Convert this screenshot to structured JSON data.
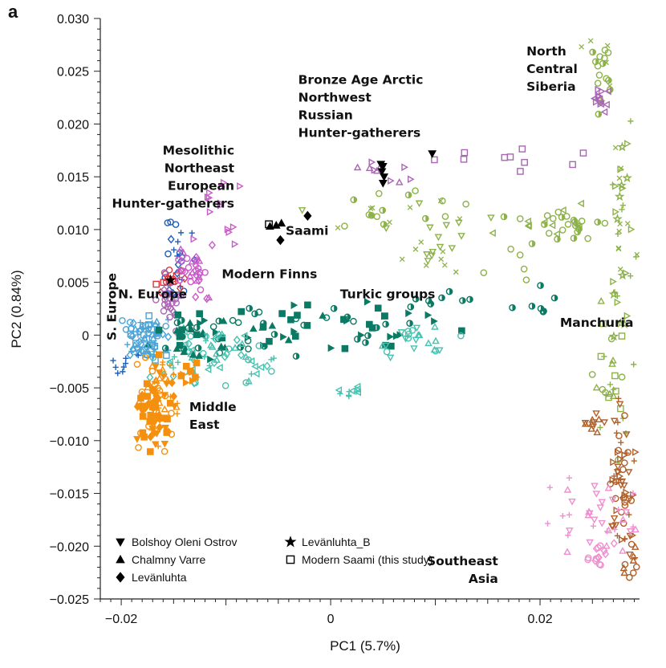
{
  "panel_letter": "a",
  "colors": {
    "green": "#8db24a",
    "purple": "#a866b3",
    "magenta": "#c85cc8",
    "teal": "#0a7a64",
    "aqua": "#48c2b0",
    "orange": "#f5900f",
    "brown": "#b0602a",
    "pink": "#ee8fcf",
    "blue": "#1f5fb8",
    "lightblue": "#4aa3d6",
    "red": "#e0333a",
    "black": "#000000"
  },
  "chart_data": {
    "type": "scatter",
    "xlabel": "PC1 (5.7%)",
    "ylabel": "PC2 (0.84%)",
    "xlim": [
      -0.022,
      0.0295
    ],
    "ylim": [
      -0.025,
      0.03
    ],
    "xticks": [
      -0.02,
      0,
      0.02
    ],
    "xtick_labels": [
      "−0.02",
      "0",
      "0.02"
    ],
    "yticks": [
      0.03,
      0.025,
      0.02,
      0.015,
      0.01,
      0.005,
      0,
      -0.005,
      -0.01,
      -0.015,
      -0.02,
      -0.025
    ],
    "ytick_labels": [
      "0.030",
      "0.025",
      "0.020",
      "0.015",
      "0.010",
      "0.005",
      "0",
      "−0.005",
      "−0.010",
      "−0.015",
      "−0.020",
      "−0.025"
    ],
    "group_labels": [
      {
        "text": "North Central Siberia",
        "x": 0.0187,
        "y": 0.0265,
        "lines": [
          "North",
          "Central",
          "Siberia"
        ]
      },
      {
        "text": "Bronze Age Arctic Northwest Russian Hunter-gatherers",
        "x": -0.0031,
        "y": 0.0238,
        "lines": [
          "Bronze Age Arctic",
          "Northwest",
          "Russian",
          "Hunter-gatherers"
        ]
      },
      {
        "text": "Mesolithic Northeast European Hunter-gatherers",
        "x": -0.0092,
        "y": 0.0171,
        "anchor": "end",
        "lines": [
          "Mesolithic",
          "Northeast",
          "European",
          "Hunter-gatherers"
        ]
      },
      {
        "text": "Saami",
        "x": -0.0043,
        "y": 0.0095,
        "lines": [
          "Saami"
        ]
      },
      {
        "text": "Modern Finns",
        "x": -0.0104,
        "y": 0.0054,
        "lines": [
          "Modern Finns"
        ]
      },
      {
        "text": "N. Europe",
        "x": -0.0203,
        "y": 0.0035,
        "lines": [
          "N. Europe"
        ]
      },
      {
        "text": "Turkic groups",
        "x": 0.0009,
        "y": 0.0035,
        "lines": [
          "Turkic groups"
        ]
      },
      {
        "text": "Manchuria",
        "x": 0.0219,
        "y": 0.0008,
        "lines": [
          "Manchuria"
        ]
      },
      {
        "text": "S. Europe",
        "x": -0.0205,
        "y": -0.0005,
        "rotate": -90,
        "lines": [
          "S. Europe"
        ]
      },
      {
        "text": "Middle East",
        "x": -0.0135,
        "y": -0.0072,
        "lines": [
          "Middle",
          "East"
        ]
      },
      {
        "text": "Southeast Asia",
        "x": 0.016,
        "y": -0.0218,
        "anchor": "end",
        "lines": [
          "Southeast",
          "Asia"
        ]
      }
    ],
    "legend": {
      "placement": "bottom-left",
      "entries": [
        {
          "label": "Bolshoy Oleni Ostrov",
          "marker": "triangle-down-filled"
        },
        {
          "label": "Chalmny Varre",
          "marker": "triangle-up-filled"
        },
        {
          "label": "Levänluhta",
          "marker": "diamond-filled"
        },
        {
          "label": "Levänluhta_B",
          "marker": "star-filled"
        },
        {
          "label": "Modern Saami (this study)",
          "marker": "square-open"
        }
      ]
    },
    "series": [
      {
        "name": "Bolshoy Oleni Ostrov",
        "color": "#000000",
        "marker": "triangle-down-filled",
        "points": [
          [
            0.0097,
            0.0172
          ],
          [
            0.0048,
            0.0162
          ],
          [
            0.005,
            0.016
          ],
          [
            0.0049,
            0.0155
          ],
          [
            0.0051,
            0.015
          ],
          [
            0.005,
            0.0144
          ]
        ]
      },
      {
        "name": "Chalmny Varre",
        "color": "#000000",
        "marker": "triangle-up-filled",
        "points": [
          [
            -0.0058,
            0.0103
          ],
          [
            -0.0052,
            0.0104
          ],
          [
            -0.0047,
            0.0106
          ]
        ]
      },
      {
        "name": "Levänluhta",
        "color": "#000000",
        "marker": "diamond-filled",
        "points": [
          [
            -0.0022,
            0.0113
          ],
          [
            -0.0048,
            0.009
          ]
        ]
      },
      {
        "name": "Levänluhta_B",
        "color": "#000000",
        "marker": "star-filled",
        "points": [
          [
            -0.0153,
            0.0052
          ]
        ]
      },
      {
        "name": "Modern Saami (this study)",
        "color": "#000000",
        "marker": "square-open",
        "points": [
          [
            -0.0059,
            0.0105
          ]
        ]
      }
    ]
  }
}
